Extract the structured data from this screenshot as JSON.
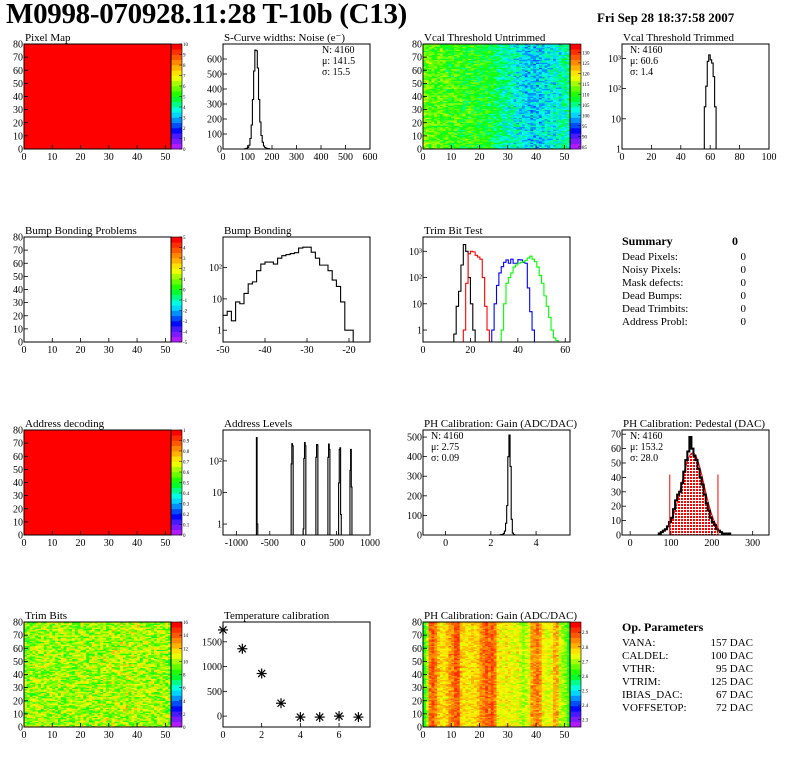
{
  "header": {
    "title": "M0998-070928.11:28 T-10b (C13)",
    "date": "Fri Sep 28 18:37:58 2007"
  },
  "summary": {
    "title": "Summary",
    "total": "0",
    "items": [
      {
        "label": "Dead Pixels:",
        "value": "0"
      },
      {
        "label": "Noisy Pixels:",
        "value": "0"
      },
      {
        "label": "Mask defects:",
        "value": "0"
      },
      {
        "label": "Dead Bumps:",
        "value": "0"
      },
      {
        "label": "Dead Trimbits:",
        "value": "0"
      },
      {
        "label": "Address Probl:",
        "value": "0"
      }
    ]
  },
  "op_parameters": {
    "title": "Op. Parameters",
    "items": [
      {
        "label": "VANA:",
        "value": "157 DAC"
      },
      {
        "label": "CALDEL:",
        "value": "100 DAC"
      },
      {
        "label": "VTHR:",
        "value": "95 DAC"
      },
      {
        "label": "VTRIM:",
        "value": "125 DAC"
      },
      {
        "label": "IBIAS_DAC:",
        "value": "67 DAC"
      },
      {
        "label": "VOFFSETOP:",
        "value": "72 DAC"
      }
    ]
  },
  "chart_data": [
    {
      "type": "heatmap",
      "title": "Pixel Map",
      "xlim": [
        0,
        52
      ],
      "ylim": [
        0,
        80
      ],
      "zlim": [
        0,
        10
      ],
      "xticks": [
        0,
        10,
        20,
        30,
        40,
        50
      ],
      "yticks": [
        0,
        10,
        20,
        30,
        40,
        50,
        60,
        70,
        80
      ],
      "zticks": [
        0,
        1,
        2,
        3,
        4,
        5,
        6,
        7,
        8,
        9,
        10
      ],
      "uniform_value": 10
    },
    {
      "type": "hist",
      "title": "S-Curve widths: Noise (e⁻)",
      "xlim": [
        0,
        600
      ],
      "ylim": [
        0,
        700
      ],
      "ylog": false,
      "xticks": [
        0,
        100,
        200,
        300,
        400,
        500,
        600
      ],
      "yticks": [
        0,
        100,
        200,
        300,
        400,
        500,
        600
      ],
      "stats_position": "top-right",
      "stats": [
        {
          "text": "N: 4160",
          "color": "#000000"
        },
        {
          "text": "μ: 141.5",
          "color": "#000000"
        },
        {
          "text": "σ: 15.5",
          "color": "#000000"
        }
      ],
      "series": [
        {
          "color": "#000000",
          "x_start": 90,
          "bin_width": 5,
          "values": [
            3,
            5,
            10,
            25,
            70,
            160,
            330,
            520,
            660,
            655,
            540,
            330,
            180,
            90,
            45,
            20,
            10,
            5,
            3,
            2
          ]
        }
      ]
    },
    {
      "type": "heatmap",
      "title": "Vcal Threshold Untrimmed",
      "xlim": [
        0,
        52
      ],
      "ylim": [
        0,
        80
      ],
      "zlim": [
        84,
        134
      ],
      "xticks": [
        0,
        10,
        20,
        30,
        40,
        50
      ],
      "yticks": [
        0,
        10,
        20,
        30,
        40,
        50,
        60,
        70,
        80
      ],
      "zticks": [
        85,
        90,
        95,
        100,
        105,
        110,
        115,
        120,
        125,
        130
      ],
      "spread": 5,
      "column_means": [
        113,
        113,
        112,
        112,
        112,
        112,
        112,
        111,
        111,
        111,
        111,
        111,
        111,
        110,
        110,
        110,
        110,
        110,
        110,
        109,
        109,
        109,
        109,
        108,
        108,
        107,
        106,
        105,
        104,
        104,
        103,
        103,
        102,
        102,
        101,
        101,
        100,
        100,
        100,
        100,
        100,
        100,
        101,
        101,
        101,
        102,
        102,
        103,
        103,
        104,
        104,
        105
      ]
    },
    {
      "type": "hist",
      "title": "Vcal Threshold Trimmed",
      "xlim": [
        0,
        100
      ],
      "ylim": [
        1,
        3000
      ],
      "ylog": true,
      "xticks": [
        0,
        20,
        40,
        60,
        80,
        100
      ],
      "yticks": [
        1,
        10,
        100,
        1000
      ],
      "ytick_labels": [
        "1",
        "10",
        "10²",
        "10³"
      ],
      "stats_position": "top-left",
      "stats": [
        {
          "text": "N: 4160",
          "color": "#000000"
        },
        {
          "text": "μ: 60.6",
          "color": "#000000"
        },
        {
          "text": "σ:  1.4",
          "color": "#000000"
        }
      ],
      "series": [
        {
          "color": "#000000",
          "x_start": 55,
          "bin_width": 1,
          "values": [
            1,
            25,
            120,
            800,
            1300,
            900,
            700,
            250,
            25,
            1
          ]
        }
      ]
    },
    {
      "type": "heatmap",
      "title": "Bump Bonding Problems",
      "xlim": [
        0,
        52
      ],
      "ylim": [
        0,
        80
      ],
      "zlim": [
        -5,
        5
      ],
      "xticks": [
        0,
        10,
        20,
        30,
        40,
        50
      ],
      "yticks": [
        0,
        10,
        20,
        30,
        40,
        50,
        60,
        70,
        80
      ],
      "zticks": [
        -5,
        -4,
        -3,
        -2,
        -1,
        0,
        1,
        2,
        3,
        4,
        5
      ]
    },
    {
      "type": "hist",
      "title": "Bump Bonding",
      "xlim": [
        -50,
        -15
      ],
      "ylim": [
        0.42,
        950
      ],
      "ylog": true,
      "xticks": [
        -50,
        -40,
        -30,
        -20
      ],
      "yticks": [
        1,
        10,
        100
      ],
      "ytick_labels": [
        "1",
        "10",
        "10²"
      ],
      "series": [
        {
          "color": "#000000",
          "x_start": -50,
          "bin_width": 1,
          "values": [
            3,
            4,
            2,
            8,
            7,
            15,
            30,
            35,
            80,
            130,
            150,
            150,
            130,
            200,
            240,
            260,
            280,
            300,
            420,
            450,
            450,
            310,
            200,
            120,
            120,
            80,
            40,
            25,
            8,
            1,
            1
          ]
        }
      ]
    },
    {
      "type": "hist",
      "title": "Trim Bit Test",
      "xlim": [
        0,
        62
      ],
      "ylim": [
        0.35,
        3500
      ],
      "ylog": true,
      "xticks": [
        0,
        20,
        40,
        60
      ],
      "yticks": [
        1,
        10,
        100,
        1000
      ],
      "ytick_labels": [
        "1",
        "10",
        "10²",
        "10³"
      ],
      "series": [
        {
          "color": "#000000",
          "x_start": 13,
          "bin_width": 1,
          "values": [
            0.7,
            8,
            30,
            300,
            1800,
            1000,
            100,
            10,
            1
          ]
        },
        {
          "color": "#ff0000",
          "x_start": 17,
          "bin_width": 1,
          "values": [
            1,
            60,
            800,
            1000,
            950,
            700,
            600,
            500,
            100,
            8,
            1
          ]
        },
        {
          "color": "#0000ff",
          "x_start": 29,
          "bin_width": 1,
          "values": [
            1,
            10,
            50,
            150,
            260,
            380,
            470,
            350,
            500,
            350,
            350,
            480,
            470,
            380,
            350,
            40,
            5,
            1
          ]
        },
        {
          "color": "#00ff00",
          "x_start": 33,
          "bin_width": 1,
          "values": [
            1,
            10,
            60,
            100,
            150,
            250,
            300,
            350,
            380,
            400,
            450,
            550,
            650,
            500,
            400,
            250,
            120,
            60,
            20,
            8,
            3,
            1,
            0.5,
            0.4
          ]
        }
      ]
    },
    {
      "type": "heatmap",
      "title": "Address decoding",
      "xlim": [
        0,
        52
      ],
      "ylim": [
        0,
        80
      ],
      "zlim": [
        0,
        1
      ],
      "xticks": [
        0,
        10,
        20,
        30,
        40,
        50
      ],
      "yticks": [
        0,
        10,
        20,
        30,
        40,
        50,
        60,
        70,
        80
      ],
      "zticks": [
        0,
        0.1,
        0.2,
        0.3,
        0.4,
        0.5,
        0.6,
        0.7,
        0.8,
        0.9,
        1
      ],
      "uniform_value": 1
    },
    {
      "type": "hist",
      "title": "Address Levels",
      "xlim": [
        -1200,
        1000
      ],
      "ylim": [
        0.45,
        950
      ],
      "ylog": true,
      "xticks": [
        -1000,
        -500,
        0,
        500,
        1000
      ],
      "yticks": [
        1,
        10,
        100
      ],
      "ytick_labels": [
        "1",
        "10",
        "10²"
      ],
      "series": [
        {
          "color": "#000000",
          "bin_width": 10,
          "bins": [
            [
              -700,
              550
            ],
            [
              -690,
              1
            ],
            [
              -180,
              80
            ],
            [
              -170,
              350
            ],
            [
              -160,
              300
            ],
            [
              0,
              0.7
            ],
            [
              10,
              120
            ],
            [
              20,
              380
            ],
            [
              30,
              300
            ],
            [
              190,
              130
            ],
            [
              200,
              330
            ],
            [
              210,
              320
            ],
            [
              370,
              130
            ],
            [
              380,
              340
            ],
            [
              390,
              230
            ],
            [
              530,
              20
            ],
            [
              540,
              230
            ],
            [
              550,
              260
            ],
            [
              560,
              2
            ],
            [
              700,
              50
            ],
            [
              710,
              230
            ],
            [
              720,
              15
            ]
          ]
        }
      ]
    },
    {
      "type": "hist",
      "title": "PH Calibration: Gain (ADC/DAC)",
      "xlim": [
        -1,
        5.5
      ],
      "ylim": [
        0,
        536
      ],
      "ylog": false,
      "xticks": [
        0,
        2,
        4
      ],
      "yticks": [
        0,
        100,
        200,
        300,
        400,
        500
      ],
      "stats_position": "top-left",
      "stats": [
        {
          "text": "N: 4160",
          "color": "#000000"
        },
        {
          "text": "μ: 2.75",
          "color": "#000000"
        },
        {
          "text": "σ: 0.09",
          "color": "#000000"
        }
      ],
      "series": [
        {
          "color": "#000000",
          "x_start": 2.4,
          "bin_width": 0.05,
          "values": [
            1,
            2,
            3,
            8,
            20,
            60,
            150,
            400,
            510,
            350,
            80,
            10,
            2
          ]
        }
      ]
    },
    {
      "type": "hist",
      "title": "PH Calibration: Pedestal (DAC)",
      "xlim": [
        -20,
        340
      ],
      "ylim": [
        0,
        72.9
      ],
      "ylog": false,
      "xticks": [
        0,
        100,
        200,
        300
      ],
      "yticks": [
        0,
        10,
        20,
        30,
        40,
        50,
        60,
        70
      ],
      "stats_position": "top-left",
      "stats": [
        {
          "text": "N: 4160",
          "color": "#000000"
        },
        {
          "text": "μ: 153.2",
          "color": "#ff0000"
        },
        {
          "text": "σ: 28.0",
          "color": "#ff0000"
        }
      ],
      "series": [
        {
          "color": "#000000",
          "thick": true,
          "x_start": 70,
          "bin_width": 5,
          "values": [
            1,
            2,
            3,
            4,
            6,
            9,
            12,
            18,
            24,
            28,
            30,
            36,
            44,
            52,
            58,
            68,
            60,
            55,
            52,
            46,
            40,
            35,
            28,
            22,
            17,
            12,
            9,
            7,
            4,
            3,
            2,
            1,
            1,
            0,
            1
          ]
        }
      ],
      "fit": {
        "color": "#ff0000",
        "mean": 153.2,
        "sigma": 28.0,
        "amplitude": 57,
        "range": [
          97,
          215
        ]
      },
      "markers": [
        {
          "x": 97,
          "y": 42,
          "color": "#ff0000"
        },
        {
          "x": 215,
          "y": 42,
          "color": "#ff0000"
        }
      ]
    },
    {
      "type": "heatmap",
      "title": "Trim Bits",
      "xlim": [
        0,
        52
      ],
      "ylim": [
        0,
        80
      ],
      "zlim": [
        0,
        16
      ],
      "xticks": [
        0,
        10,
        20,
        30,
        40,
        50
      ],
      "yticks": [
        0,
        10,
        20,
        30,
        40,
        50,
        60,
        70,
        80
      ],
      "zticks": [
        0,
        2,
        4,
        6,
        8,
        10,
        12,
        14,
        16
      ],
      "spread": 2.2,
      "column_means": [
        9.5,
        9.8,
        10,
        10,
        10,
        10,
        10,
        10,
        10,
        10,
        10,
        10,
        10,
        10,
        10,
        10,
        10,
        10,
        10,
        10,
        10,
        10,
        10,
        10,
        10,
        10,
        10,
        10,
        10.2,
        10.2,
        10.3,
        10.3,
        10.3,
        10.3,
        10.3,
        10.2,
        10.2,
        10.2,
        10.2,
        10.2,
        10.2,
        10,
        10,
        10,
        10,
        10,
        10,
        10,
        10,
        10,
        9.8,
        9.5
      ]
    },
    {
      "type": "scatter",
      "title": "Temperature calibration",
      "xlim": [
        0,
        7.6
      ],
      "ylim": [
        -220,
        1900
      ],
      "xticks": [
        0,
        2,
        4,
        6
      ],
      "yticks": [
        0,
        500,
        1000,
        1500
      ],
      "points": [
        [
          0,
          1740
        ],
        [
          1,
          1360
        ],
        [
          2,
          860
        ],
        [
          3,
          260
        ],
        [
          4,
          -20
        ],
        [
          5,
          -20
        ],
        [
          6,
          0
        ],
        [
          7,
          -20
        ]
      ]
    },
    {
      "type": "heatmap",
      "title": "PH Calibration: Gain (ADC/DAC)",
      "xlim": [
        0,
        52
      ],
      "ylim": [
        0,
        80
      ],
      "zlim": [
        2.25,
        2.97
      ],
      "xticks": [
        0,
        10,
        20,
        30,
        40,
        50
      ],
      "yticks": [
        0,
        10,
        20,
        30,
        40,
        50,
        60,
        70,
        80
      ],
      "zticks": [
        2.3,
        2.4,
        2.5,
        2.6,
        2.7,
        2.8,
        2.9
      ],
      "spread": 0.05,
      "column_means": [
        2.62,
        2.7,
        2.88,
        2.9,
        2.86,
        2.8,
        2.78,
        2.77,
        2.8,
        2.84,
        2.86,
        2.9,
        2.9,
        2.8,
        2.78,
        2.78,
        2.77,
        2.79,
        2.78,
        2.8,
        2.85,
        2.87,
        2.9,
        2.88,
        2.9,
        2.86,
        2.77,
        2.76,
        2.75,
        2.77,
        2.76,
        2.75,
        2.74,
        2.76,
        2.72,
        2.7,
        2.72,
        2.74,
        2.84,
        2.85,
        2.87,
        2.84,
        2.76,
        2.75,
        2.74,
        2.76,
        2.82,
        2.83,
        2.72,
        2.7,
        2.68,
        2.62
      ]
    }
  ]
}
